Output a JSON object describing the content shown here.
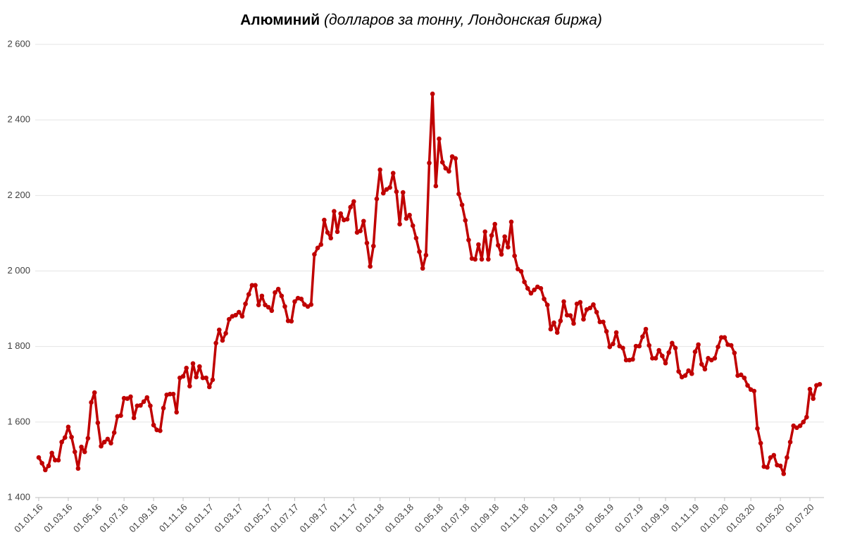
{
  "chart_data": {
    "type": "line",
    "title": "Алюминий",
    "subtitle": "(долларов за тонну, Лондонская биржа)",
    "categories": [
      "01.01.16",
      null,
      null,
      null,
      null,
      null,
      null,
      null,
      null,
      "01.03.16",
      null,
      null,
      null,
      null,
      null,
      null,
      null,
      null,
      "01.05.16",
      null,
      null,
      null,
      null,
      null,
      null,
      null,
      "01.07.16",
      null,
      null,
      null,
      null,
      null,
      null,
      null,
      null,
      "01.09.16",
      null,
      null,
      null,
      null,
      null,
      null,
      null,
      null,
      "01.11.16",
      null,
      null,
      null,
      null,
      null,
      null,
      null,
      "01.01.17",
      null,
      null,
      null,
      null,
      null,
      null,
      null,
      null,
      "01.03.17",
      null,
      null,
      null,
      null,
      null,
      null,
      null,
      null,
      "01.05.17",
      null,
      null,
      null,
      null,
      null,
      null,
      null,
      "01.07.17",
      null,
      null,
      null,
      null,
      null,
      null,
      null,
      null,
      "01.09.17",
      null,
      null,
      null,
      null,
      null,
      null,
      null,
      null,
      "01.11.17",
      null,
      null,
      null,
      null,
      null,
      null,
      null,
      "01.01.18",
      null,
      null,
      null,
      null,
      null,
      null,
      null,
      null,
      "01.03.18",
      null,
      null,
      null,
      null,
      null,
      null,
      null,
      null,
      "01.05.18",
      null,
      null,
      null,
      null,
      null,
      null,
      null,
      "01.07.18",
      null,
      null,
      null,
      null,
      null,
      null,
      null,
      null,
      "01.09.18",
      null,
      null,
      null,
      null,
      null,
      null,
      null,
      null,
      "01.11.18",
      null,
      null,
      null,
      null,
      null,
      null,
      null,
      null,
      "01.01.19",
      null,
      null,
      null,
      null,
      null,
      null,
      null,
      "01.03.19",
      null,
      null,
      null,
      null,
      null,
      null,
      null,
      null,
      "01.05.19",
      null,
      null,
      null,
      null,
      null,
      null,
      null,
      null,
      "01.07.19",
      null,
      null,
      null,
      null,
      null,
      null,
      null,
      "01.09.19",
      null,
      null,
      null,
      null,
      null,
      null,
      null,
      null,
      "01.11.19",
      null,
      null,
      null,
      null,
      null,
      null,
      null,
      null,
      "01.01.20",
      null,
      null,
      null,
      null,
      null,
      null,
      null,
      "01.03.20",
      null,
      null,
      null,
      null,
      null,
      null,
      null,
      null,
      "01.05.20",
      null,
      null,
      null,
      null,
      null,
      null,
      null,
      null,
      "01.07.20",
      null,
      null,
      null
    ],
    "series": [
      {
        "color": "#c00000",
        "values": [
          1506,
          1491,
          1473,
          1484,
          1518,
          1499,
          1499,
          1547,
          1559,
          1587,
          1560,
          1521,
          1477,
          1534,
          1521,
          1557,
          1652,
          1678,
          1598,
          1536,
          1547,
          1555,
          1544,
          1572,
          1615,
          1617,
          1663,
          1662,
          1667,
          1611,
          1643,
          1644,
          1654,
          1665,
          1643,
          1592,
          1579,
          1577,
          1637,
          1672,
          1674,
          1674,
          1626,
          1717,
          1721,
          1743,
          1695,
          1755,
          1719,
          1747,
          1717,
          1717,
          1693,
          1712,
          1809,
          1844,
          1816,
          1835,
          1872,
          1880,
          1883,
          1891,
          1880,
          1913,
          1938,
          1962,
          1962,
          1910,
          1934,
          1910,
          1904,
          1895,
          1943,
          1952,
          1934,
          1906,
          1868,
          1867,
          1919,
          1928,
          1926,
          1911,
          1906,
          1911,
          2044,
          2061,
          2070,
          2135,
          2102,
          2087,
          2158,
          2104,
          2152,
          2135,
          2137,
          2169,
          2184,
          2102,
          2106,
          2132,
          2074,
          2012,
          2066,
          2191,
          2268,
          2206,
          2216,
          2221,
          2259,
          2210,
          2124,
          2208,
          2139,
          2148,
          2120,
          2087,
          2051,
          2007,
          2042,
          2286,
          2469,
          2225,
          2350,
          2288,
          2272,
          2264,
          2303,
          2298,
          2204,
          2175,
          2134,
          2082,
          2033,
          2031,
          2070,
          2031,
          2104,
          2031,
          2094,
          2124,
          2068,
          2044,
          2091,
          2063,
          2130,
          2040,
          2005,
          1999,
          1971,
          1954,
          1941,
          1950,
          1958,
          1954,
          1926,
          1910,
          1846,
          1863,
          1837,
          1868,
          1919,
          1883,
          1882,
          1861,
          1913,
          1917,
          1872,
          1898,
          1902,
          1911,
          1891,
          1865,
          1865,
          1840,
          1799,
          1807,
          1837,
          1801,
          1796,
          1764,
          1764,
          1766,
          1801,
          1801,
          1826,
          1846,
          1803,
          1769,
          1769,
          1790,
          1775,
          1756,
          1784,
          1809,
          1796,
          1734,
          1719,
          1723,
          1736,
          1728,
          1786,
          1805,
          1753,
          1740,
          1769,
          1764,
          1769,
          1799,
          1824,
          1824,
          1805,
          1803,
          1783,
          1723,
          1725,
          1717,
          1697,
          1686,
          1682,
          1583,
          1544,
          1482,
          1480,
          1506,
          1512,
          1486,
          1484,
          1463,
          1506,
          1547,
          1590,
          1585,
          1590,
          1600,
          1613,
          1687,
          1662,
          1697,
          1700
        ]
      }
    ],
    "ylim": [
      1400,
      2600
    ],
    "yticks": [
      {
        "value": 1400,
        "label": "1 400"
      },
      {
        "value": 1600,
        "label": "1 600"
      },
      {
        "value": 1800,
        "label": "1 800"
      },
      {
        "value": 2000,
        "label": "2 000"
      },
      {
        "value": 2200,
        "label": "2 200"
      },
      {
        "value": 2400,
        "label": "2 400"
      },
      {
        "value": 2600,
        "label": "2 600"
      }
    ],
    "grid": true
  }
}
